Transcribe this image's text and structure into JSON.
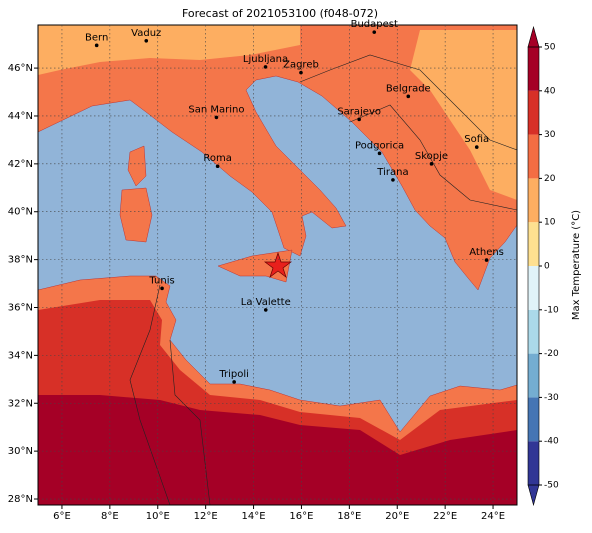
{
  "chart_data": {
    "type": "map",
    "title": "Forecast of 2021053100 (f048-072)",
    "xlim": [
      5,
      25
    ],
    "ylim": [
      27.75,
      47.8
    ],
    "xticks": [
      {
        "value": 6,
        "label": "6°E"
      },
      {
        "value": 8,
        "label": "8°E"
      },
      {
        "value": 10,
        "label": "10°E"
      },
      {
        "value": 12,
        "label": "12°E"
      },
      {
        "value": 14,
        "label": "14°E"
      },
      {
        "value": 16,
        "label": "16°E"
      },
      {
        "value": 18,
        "label": "18°E"
      },
      {
        "value": 20,
        "label": "20°E"
      },
      {
        "value": 22,
        "label": "22°E"
      },
      {
        "value": 24,
        "label": "24°E"
      }
    ],
    "yticks": [
      {
        "value": 28,
        "label": "28°N"
      },
      {
        "value": 30,
        "label": "30°N"
      },
      {
        "value": 32,
        "label": "32°N"
      },
      {
        "value": 34,
        "label": "34°N"
      },
      {
        "value": 36,
        "label": "36°N"
      },
      {
        "value": 38,
        "label": "38°N"
      },
      {
        "value": 40,
        "label": "40°N"
      },
      {
        "value": 42,
        "label": "42°N"
      },
      {
        "value": 44,
        "label": "44°N"
      },
      {
        "value": 46,
        "label": "46°N"
      }
    ],
    "grid": true,
    "cities": [
      {
        "name": "Bern",
        "lon": 7.45,
        "lat": 46.95
      },
      {
        "name": "Vaduz",
        "lon": 9.52,
        "lat": 47.14
      },
      {
        "name": "Budapest",
        "lon": 19.04,
        "lat": 47.5
      },
      {
        "name": "Ljubljana",
        "lon": 14.5,
        "lat": 46.05
      },
      {
        "name": "Zagreb",
        "lon": 15.98,
        "lat": 45.81
      },
      {
        "name": "Belgrade",
        "lon": 20.46,
        "lat": 44.82
      },
      {
        "name": "San Marino",
        "lon": 12.45,
        "lat": 43.94
      },
      {
        "name": "Sarajevo",
        "lon": 18.41,
        "lat": 43.86
      },
      {
        "name": "Sofia",
        "lon": 23.32,
        "lat": 42.7
      },
      {
        "name": "Podgorica",
        "lon": 19.26,
        "lat": 42.44
      },
      {
        "name": "Roma",
        "lon": 12.5,
        "lat": 41.9
      },
      {
        "name": "Skopje",
        "lon": 21.43,
        "lat": 42.0
      },
      {
        "name": "Tirana",
        "lon": 19.82,
        "lat": 41.33
      },
      {
        "name": "Athens",
        "lon": 23.73,
        "lat": 37.98
      },
      {
        "name": "Tunis",
        "lon": 10.18,
        "lat": 36.8
      },
      {
        "name": "La Valette",
        "lon": 14.51,
        "lat": 35.9
      },
      {
        "name": "Tripoli",
        "lon": 13.19,
        "lat": 32.89
      }
    ],
    "colorbar": {
      "label": "Max Temperature (°C)",
      "lim": [
        -50,
        50
      ],
      "ticks": [
        -50,
        -40,
        -30,
        -20,
        -10,
        0,
        10,
        20,
        30,
        40,
        50
      ],
      "colors": [
        "#313695",
        "#4575b4",
        "#74add1",
        "#abd9e9",
        "#e0f3f8",
        "#ffffbf",
        "#fee090",
        "#fdae61",
        "#f46d43",
        "#d73027",
        "#a50026"
      ]
    }
  }
}
